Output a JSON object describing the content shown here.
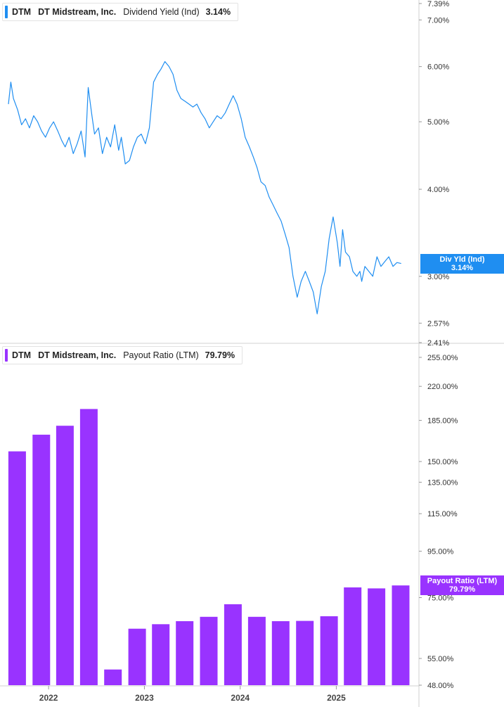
{
  "chart_data": [
    {
      "type": "line",
      "ticker": "DTM",
      "company": "DT Midstream, Inc.",
      "metric": "Dividend Yield (Ind)",
      "current_value": "3.14%",
      "badge_label": "Div Yld (Ind)",
      "badge_value": "3.14%",
      "color": "#1f8ef1",
      "y_scale": "log",
      "ylim": [
        2.41,
        7.39
      ],
      "y_ticks": [
        "7.39%",
        "7.00%",
        "6.00%",
        "5.00%",
        "4.00%",
        "3.00%",
        "2.57%",
        "2.41%"
      ],
      "y_tick_values": [
        7.39,
        7.0,
        6.0,
        5.0,
        4.0,
        3.0,
        2.57,
        2.41
      ],
      "xlim": [
        "2021-08-01",
        "2025-09-30"
      ],
      "x": [
        "2021-08-01",
        "2021-08-10",
        "2021-08-20",
        "2021-09-05",
        "2021-09-20",
        "2021-10-05",
        "2021-10-20",
        "2021-11-05",
        "2021-11-20",
        "2021-12-05",
        "2021-12-20",
        "2022-01-05",
        "2022-01-20",
        "2022-02-05",
        "2022-02-20",
        "2022-03-05",
        "2022-03-20",
        "2022-04-05",
        "2022-04-20",
        "2022-05-05",
        "2022-05-20",
        "2022-06-01",
        "2022-06-15",
        "2022-06-25",
        "2022-07-10",
        "2022-07-25",
        "2022-08-10",
        "2022-08-25",
        "2022-09-10",
        "2022-09-25",
        "2022-10-05",
        "2022-10-20",
        "2022-11-05",
        "2022-11-20",
        "2022-12-05",
        "2022-12-20",
        "2023-01-05",
        "2023-01-20",
        "2023-02-05",
        "2023-02-20",
        "2023-03-05",
        "2023-03-20",
        "2023-04-05",
        "2023-04-20",
        "2023-05-05",
        "2023-05-20",
        "2023-06-05",
        "2023-06-20",
        "2023-07-05",
        "2023-07-20",
        "2023-08-05",
        "2023-08-20",
        "2023-09-05",
        "2023-09-20",
        "2023-10-05",
        "2023-10-20",
        "2023-11-05",
        "2023-11-20",
        "2023-12-05",
        "2023-12-20",
        "2024-01-05",
        "2024-01-20",
        "2024-02-05",
        "2024-02-20",
        "2024-03-05",
        "2024-03-20",
        "2024-04-05",
        "2024-04-20",
        "2024-05-05",
        "2024-05-20",
        "2024-06-05",
        "2024-06-20",
        "2024-07-05",
        "2024-07-20",
        "2024-08-05",
        "2024-08-20",
        "2024-09-05",
        "2024-09-20",
        "2024-10-05",
        "2024-10-20",
        "2024-11-05",
        "2024-11-20",
        "2024-12-05",
        "2024-12-20",
        "2025-01-05",
        "2025-01-15",
        "2025-01-25",
        "2025-02-05",
        "2025-02-20",
        "2025-03-05",
        "2025-03-20",
        "2025-04-01",
        "2025-04-08",
        "2025-04-20",
        "2025-05-05",
        "2025-05-20",
        "2025-06-05",
        "2025-06-20",
        "2025-07-05",
        "2025-07-20",
        "2025-08-05",
        "2025-08-20",
        "2025-09-05"
      ],
      "y": [
        5.3,
        5.7,
        5.4,
        5.2,
        4.95,
        5.05,
        4.9,
        5.1,
        5.0,
        4.85,
        4.75,
        4.9,
        5.0,
        4.85,
        4.7,
        4.6,
        4.75,
        4.5,
        4.65,
        4.85,
        4.45,
        5.6,
        5.1,
        4.8,
        4.9,
        4.5,
        4.75,
        4.6,
        4.95,
        4.55,
        4.75,
        4.35,
        4.4,
        4.6,
        4.75,
        4.8,
        4.65,
        4.9,
        5.7,
        5.85,
        5.95,
        6.1,
        6.0,
        5.85,
        5.55,
        5.4,
        5.35,
        5.3,
        5.25,
        5.3,
        5.15,
        5.05,
        4.9,
        5.0,
        5.1,
        5.05,
        5.15,
        5.3,
        5.45,
        5.3,
        5.05,
        4.75,
        4.6,
        4.45,
        4.3,
        4.1,
        4.05,
        3.9,
        3.8,
        3.7,
        3.6,
        3.45,
        3.3,
        3.0,
        2.8,
        2.95,
        3.05,
        2.95,
        2.85,
        2.65,
        2.9,
        3.05,
        3.4,
        3.65,
        3.35,
        3.1,
        3.5,
        3.25,
        3.2,
        3.05,
        3.0,
        3.05,
        2.95,
        3.1,
        3.05,
        3.0,
        3.2,
        3.1,
        3.15,
        3.2,
        3.1,
        3.14,
        3.13
      ],
      "grid": false
    },
    {
      "type": "bar",
      "ticker": "DTM",
      "company": "DT Midstream, Inc.",
      "metric": "Payout Ratio (LTM)",
      "current_value": "79.79%",
      "badge_label": "Payout Ratio (LTM)",
      "badge_value": "79.79%",
      "color": "#9933ff",
      "y_scale": "log",
      "ylim": [
        48.0,
        255.0
      ],
      "y_ticks": [
        "255.00%",
        "220.00%",
        "185.00%",
        "150.00%",
        "135.00%",
        "115.00%",
        "95.00%",
        "75.00%",
        "55.00%",
        "48.00%"
      ],
      "y_tick_values": [
        255,
        220,
        185,
        150,
        135,
        115,
        95,
        75,
        55,
        48
      ],
      "categories": [
        "2021-09-30",
        "2021-12-31",
        "2022-03-31",
        "2022-06-30",
        "2022-09-30",
        "2022-12-31",
        "2023-03-31",
        "2023-06-30",
        "2023-09-30",
        "2023-12-31",
        "2024-03-31",
        "2024-06-30",
        "2024-09-30",
        "2024-12-31",
        "2025-03-31",
        "2025-06-30",
        "2025-09-30"
      ],
      "values": [
        158,
        172,
        180,
        196,
        52,
        64,
        65.5,
        66.5,
        68,
        72.5,
        68,
        66.5,
        66.6,
        68.2,
        79,
        78.6,
        79.79
      ],
      "x_ticks": [
        "2022",
        "2023",
        "2024",
        "2025"
      ],
      "grid": false
    }
  ]
}
